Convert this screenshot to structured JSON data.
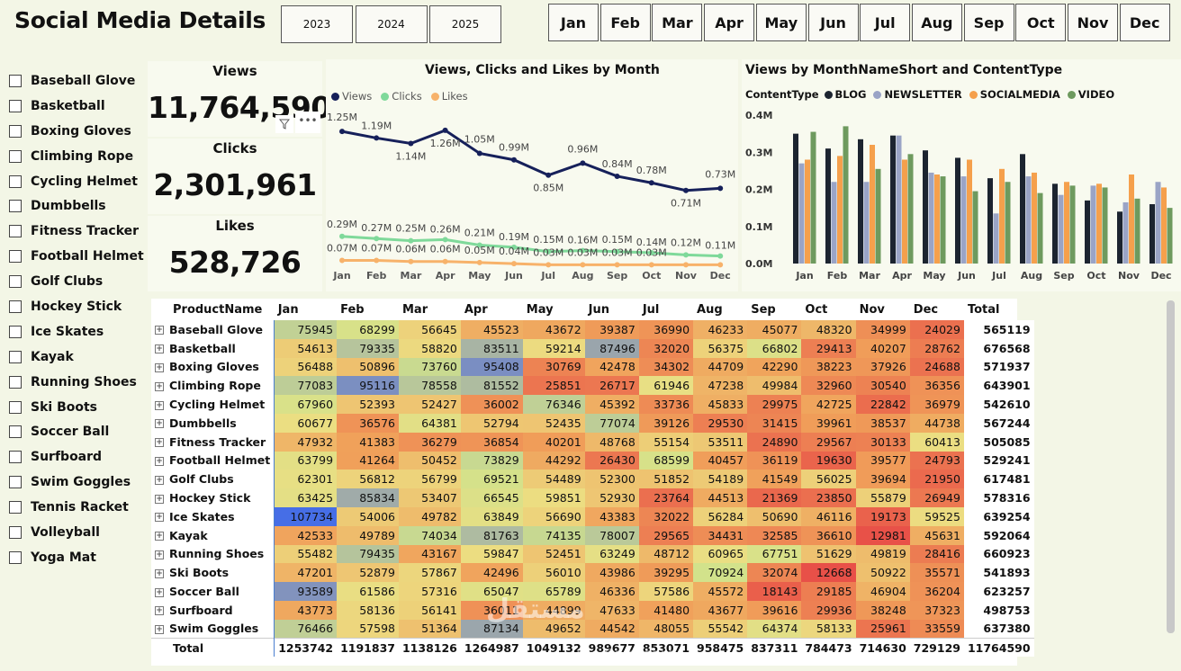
{
  "title": "Social Media Details",
  "years": [
    "2023",
    "2024",
    "2025"
  ],
  "months": [
    "Jan",
    "Feb",
    "Mar",
    "Apr",
    "May",
    "Jun",
    "Jul",
    "Aug",
    "Sep",
    "Oct",
    "Nov",
    "Dec"
  ],
  "products": [
    "Baseball Glove",
    "Basketball",
    "Boxing Gloves",
    "Climbing Rope",
    "Cycling Helmet",
    "Dumbbells",
    "Fitness Tracker",
    "Football Helmet",
    "Golf Clubs",
    "Hockey Stick",
    "Ice Skates",
    "Kayak",
    "Running Shoes",
    "Ski Boots",
    "Soccer Ball",
    "Surfboard",
    "Swim Goggles",
    "Tennis Racket",
    "Volleyball",
    "Yoga Mat"
  ],
  "cards": {
    "views_label": "Views",
    "views_value": "11,764,590",
    "clicks_label": "Clicks",
    "clicks_value": "2,301,961",
    "likes_label": "Likes",
    "likes_value": "528,726"
  },
  "line_chart_title": "Views, Clicks and Likes by Month",
  "bar_chart_title": "Views by MonthNameShort and ContentType",
  "bar_legend_title": "ContentType",
  "colors": {
    "views": "#16205a",
    "clicks": "#7fd99a",
    "likes": "#f7b26a",
    "blog": "#1c2430",
    "newsletter": "#9aa4c6",
    "socialmedia": "#f5a04c",
    "video": "#6e9a5e"
  },
  "chart_data": [
    {
      "type": "line",
      "title": "Views, Clicks and Likes by Month",
      "categories": [
        "Jan",
        "Feb",
        "Mar",
        "Apr",
        "May",
        "Jun",
        "Jul",
        "Aug",
        "Sep",
        "Oct",
        "Nov",
        "Dec"
      ],
      "series": [
        {
          "name": "Views",
          "values": [
            1.25,
            1.19,
            1.14,
            1.26,
            1.05,
            0.99,
            0.85,
            0.96,
            0.84,
            0.78,
            0.71,
            0.73
          ],
          "labels": [
            "1.25M",
            "1.19M",
            "1.14M",
            "1.26M",
            "1.05M",
            "0.99M",
            "0.85M",
            "0.96M",
            "0.84M",
            "0.78M",
            "0.71M",
            "0.73M"
          ]
        },
        {
          "name": "Clicks",
          "values": [
            0.29,
            0.27,
            0.25,
            0.26,
            0.21,
            0.19,
            0.15,
            0.16,
            0.15,
            0.14,
            0.12,
            0.11
          ],
          "labels": [
            "0.29M",
            "0.27M",
            "0.25M",
            "0.26M",
            "0.21M",
            "0.19M",
            "0.15M",
            "0.16M",
            "0.15M",
            "0.14M",
            "0.12M",
            "0.11M"
          ]
        },
        {
          "name": "Likes",
          "values": [
            0.07,
            0.07,
            0.06,
            0.06,
            0.05,
            0.04,
            0.03,
            0.03,
            0.03,
            0.03,
            0.03,
            0.03
          ],
          "labels": [
            "0.07M",
            "0.07M",
            "0.06M",
            "0.06M",
            "0.05M",
            "0.04M",
            "0.03M",
            "0.03M",
            "0.03M",
            "0.03M",
            "",
            ""
          ]
        }
      ],
      "ylim": [
        0,
        1.35
      ]
    },
    {
      "type": "bar",
      "title": "Views by MonthNameShort and ContentType",
      "categories": [
        "Jan",
        "Feb",
        "Mar",
        "Apr",
        "May",
        "Jun",
        "Jul",
        "Aug",
        "Sep",
        "Oct",
        "Nov",
        "Dec"
      ],
      "ytick_labels": [
        "0.0M",
        "0.1M",
        "0.2M",
        "0.3M",
        "0.4M"
      ],
      "ylim": [
        0,
        0.4
      ],
      "series": [
        {
          "name": "BLOG",
          "values": [
            0.35,
            0.31,
            0.335,
            0.345,
            0.305,
            0.285,
            0.23,
            0.295,
            0.215,
            0.17,
            0.14,
            0.16
          ]
        },
        {
          "name": "NEWSLETTER",
          "values": [
            0.27,
            0.22,
            0.22,
            0.345,
            0.245,
            0.235,
            0.135,
            0.235,
            0.185,
            0.21,
            0.165,
            0.22
          ]
        },
        {
          "name": "SOCIALMEDIA",
          "values": [
            0.28,
            0.29,
            0.32,
            0.28,
            0.24,
            0.28,
            0.255,
            0.245,
            0.22,
            0.215,
            0.24,
            0.205
          ]
        },
        {
          "name": "VIDEO",
          "values": [
            0.355,
            0.37,
            0.255,
            0.295,
            0.235,
            0.195,
            0.22,
            0.19,
            0.21,
            0.205,
            0.175,
            0.15
          ]
        }
      ]
    }
  ],
  "table": {
    "header_product": "ProductName",
    "header_total": "Total",
    "total_label": "Total",
    "rows": [
      {
        "name": "Baseball Glove",
        "values": [
          75945,
          68299,
          56645,
          45523,
          43672,
          39387,
          36990,
          46233,
          45077,
          48320,
          34999,
          24029
        ],
        "total": "565119"
      },
      {
        "name": "Basketball",
        "values": [
          54613,
          79335,
          58820,
          83511,
          59214,
          87496,
          32020,
          56375,
          66802,
          29413,
          40207,
          28762
        ],
        "total": "676568"
      },
      {
        "name": "Boxing Gloves",
        "values": [
          56488,
          50896,
          73760,
          95408,
          30769,
          42478,
          34302,
          44709,
          42290,
          38223,
          37926,
          24688
        ],
        "total": "571937"
      },
      {
        "name": "Climbing Rope",
        "values": [
          77083,
          95116,
          78558,
          81552,
          25851,
          26717,
          61946,
          47238,
          49984,
          32960,
          30540,
          36356
        ],
        "total": "643901"
      },
      {
        "name": "Cycling Helmet",
        "values": [
          67960,
          52393,
          52427,
          36002,
          76346,
          45392,
          33736,
          45833,
          29975,
          42725,
          22842,
          36979
        ],
        "total": "542610"
      },
      {
        "name": "Dumbbells",
        "values": [
          60677,
          36576,
          64381,
          52794,
          52435,
          77074,
          39126,
          29530,
          31415,
          39961,
          38537,
          44738
        ],
        "total": "567244"
      },
      {
        "name": "Fitness Tracker",
        "values": [
          47932,
          41383,
          36279,
          36854,
          40201,
          48768,
          55154,
          53511,
          24890,
          29567,
          30133,
          60413
        ],
        "total": "505085"
      },
      {
        "name": "Football Helmet",
        "values": [
          63799,
          41264,
          50452,
          73829,
          44292,
          26430,
          68599,
          40457,
          36119,
          19630,
          39577,
          24793
        ],
        "total": "529241"
      },
      {
        "name": "Golf Clubs",
        "values": [
          62301,
          56812,
          56799,
          69521,
          54489,
          52300,
          51852,
          54189,
          41549,
          56025,
          39694,
          21950
        ],
        "total": "617481"
      },
      {
        "name": "Hockey Stick",
        "values": [
          63425,
          85834,
          53407,
          66545,
          59851,
          52930,
          23764,
          44513,
          21369,
          23850,
          55879,
          26949
        ],
        "total": "578316"
      },
      {
        "name": "Ice Skates",
        "values": [
          107734,
          54006,
          49782,
          63849,
          56690,
          43383,
          32022,
          56284,
          50690,
          46116,
          19173,
          59525
        ],
        "total": "639254"
      },
      {
        "name": "Kayak",
        "values": [
          42533,
          49789,
          74034,
          81763,
          74135,
          78007,
          29565,
          34431,
          32585,
          36610,
          12981,
          45631
        ],
        "total": "592064"
      },
      {
        "name": "Running Shoes",
        "values": [
          55482,
          79435,
          43167,
          59847,
          52451,
          63249,
          48712,
          60965,
          67751,
          51629,
          49819,
          28416
        ],
        "total": "660923"
      },
      {
        "name": "Ski Boots",
        "values": [
          47201,
          52879,
          57867,
          42496,
          56010,
          43986,
          39295,
          70924,
          32074,
          12668,
          50922,
          35571
        ],
        "total": "541893"
      },
      {
        "name": "Soccer Ball",
        "values": [
          93589,
          61586,
          57316,
          65047,
          65789,
          46336,
          57586,
          45572,
          18143,
          29185,
          46904,
          36204
        ],
        "total": "623257"
      },
      {
        "name": "Surfboard",
        "values": [
          43773,
          58136,
          56141,
          36011,
          44899,
          47633,
          41480,
          43677,
          39616,
          29936,
          38248,
          37323
        ],
        "total": "498753"
      },
      {
        "name": "Swim Goggles",
        "values": [
          76466,
          57598,
          51364,
          87134,
          49652,
          44542,
          48055,
          55542,
          64374,
          58133,
          25961,
          33559
        ],
        "total": "637380"
      }
    ],
    "totals": [
      "1253742",
      "1191837",
      "1138126",
      "1264987",
      "1049132",
      "989677",
      "853071",
      "958475",
      "837311",
      "784473",
      "714630",
      "729129"
    ],
    "grand_total": "11764590"
  },
  "watermark": "مستقل",
  "watermark_url": "mostaql.com"
}
